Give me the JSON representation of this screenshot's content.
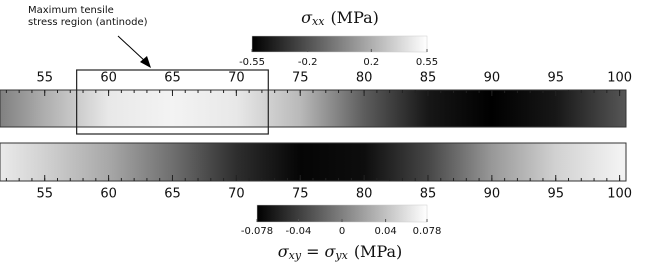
{
  "chart_data": [
    {
      "type": "strip",
      "title": {
        "symbol": "σ",
        "subscript": "xx",
        "unit": "(MPa)"
      },
      "annotation": [
        "Maximum tensile",
        "stress region (antinode)"
      ],
      "region": [
        57.5,
        72.5
      ],
      "x": [
        51.5,
        55,
        60,
        65,
        70,
        75,
        80,
        85,
        90,
        95,
        100,
        100.5
      ],
      "values": [
        0.0,
        0.2,
        0.45,
        0.5,
        0.45,
        0.25,
        -0.15,
        -0.45,
        -0.55,
        -0.45,
        -0.2,
        -0.18
      ],
      "xlim": [
        51.5,
        100.5
      ],
      "xticks": [
        55,
        60,
        65,
        70,
        75,
        80,
        85,
        90,
        95,
        100
      ],
      "minor_step": 1,
      "clim": [
        -0.55,
        0.55
      ],
      "cticks": [
        -0.55,
        -0.2,
        0.2,
        0.55
      ]
    },
    {
      "type": "strip",
      "title": {
        "symbol": "σ",
        "subscript": "xy",
        "eq": "=",
        "symbol2": "σ",
        "subscript2": "yx",
        "unit": "(MPa)"
      },
      "x": [
        51.5,
        55,
        60,
        65,
        70,
        75,
        80,
        85,
        90,
        95,
        100,
        100.5
      ],
      "values": [
        0.065,
        0.05,
        0.025,
        -0.01,
        -0.05,
        -0.075,
        -0.07,
        -0.035,
        0.015,
        0.05,
        0.07,
        0.07
      ],
      "xlim": [
        51.5,
        100.5
      ],
      "xticks": [
        55,
        60,
        65,
        70,
        75,
        80,
        85,
        90,
        95,
        100
      ],
      "minor_step": 1,
      "clim": [
        -0.078,
        0.078
      ],
      "cticks": [
        -0.078,
        -0.04,
        0,
        0.04,
        0.078
      ]
    }
  ]
}
